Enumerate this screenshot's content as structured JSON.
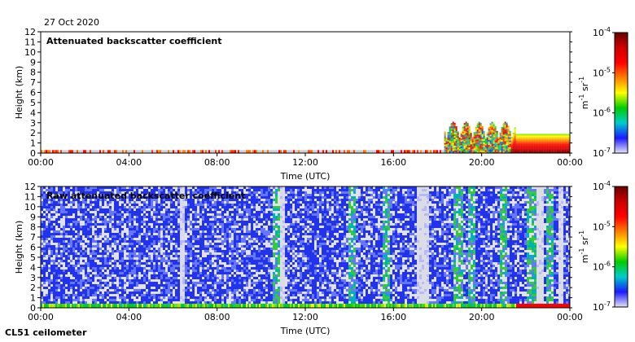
{
  "header": {
    "date": "27 Oct 2020"
  },
  "footer": {
    "instrument": "CL51 ceilometer"
  },
  "colors": {
    "cmap": [
      "#e6e6f5",
      "#1a1aff",
      "#00cccc",
      "#00cc00",
      "#ffff00",
      "#ff8000",
      "#ff0000",
      "#cc0000",
      "#660000"
    ],
    "background": "#ffffff",
    "noise_gray": "#cfcfd8"
  },
  "chart_data": [
    {
      "type": "heatmap",
      "title": "Attenuated backscatter coefficient",
      "xlabel": "Time (UTC)",
      "ylabel": "Height (km)",
      "xticks": [
        "00:00",
        "04:00",
        "08:00",
        "12:00",
        "16:00",
        "20:00",
        "00:00"
      ],
      "xlim": [
        0,
        24
      ],
      "ylim": [
        0,
        12
      ],
      "yticks": [
        "0",
        "1",
        "2",
        "3",
        "4",
        "5",
        "6",
        "7",
        "8",
        "9",
        "10",
        "11",
        "12"
      ],
      "colorbar": {
        "label": "m",
        "label_exp": "-1",
        "label_unit2": "sr",
        "label_exp2": "-1",
        "scale": "log",
        "range": [
          1e-07,
          0.0001
        ],
        "ticks": [
          {
            "base": "10",
            "exp": "-4",
            "value": 0.0001
          },
          {
            "base": "10",
            "exp": "-5",
            "value": 1e-05
          },
          {
            "base": "10",
            "exp": "-6",
            "value": 1e-06
          },
          {
            "base": "10",
            "exp": "-7",
            "value": 1e-07
          }
        ]
      },
      "features": {
        "surface_layer_top_km": 0.3,
        "cloud_start_h": 18.3,
        "cloud_end_h": 24,
        "cloud_top_km": 3.2
      }
    },
    {
      "type": "heatmap",
      "title": "Raw attenuated backscatter coefficient",
      "xlabel": "Time (UTC)",
      "ylabel": "Height (km)",
      "xticks": [
        "00:00",
        "04:00",
        "08:00",
        "12:00",
        "16:00",
        "20:00",
        "00:00"
      ],
      "xlim": [
        0,
        24
      ],
      "ylim": [
        0,
        12
      ],
      "yticks": [
        "0",
        "1",
        "2",
        "3",
        "4",
        "5",
        "6",
        "7",
        "8",
        "9",
        "10",
        "11",
        "12"
      ],
      "colorbar": {
        "label": "m",
        "label_exp": "-1",
        "label_unit2": "sr",
        "label_exp2": "-1",
        "scale": "log",
        "range": [
          1e-07,
          0.0001
        ],
        "ticks": [
          {
            "base": "10",
            "exp": "-4",
            "value": 0.0001
          },
          {
            "base": "10",
            "exp": "-5",
            "value": 1e-05
          },
          {
            "base": "10",
            "exp": "-6",
            "value": 1e-06
          },
          {
            "base": "10",
            "exp": "-7",
            "value": 1e-07
          }
        ]
      },
      "features": {
        "noise_fill": true,
        "green_band_hours": [
          10.6,
          14.1,
          15.6,
          18.9,
          19.5,
          20.9,
          22.2,
          23.0
        ],
        "clear_band_hours": [
          6.4,
          10.9,
          17.1,
          17.4,
          22.6,
          23.5
        ]
      }
    }
  ]
}
